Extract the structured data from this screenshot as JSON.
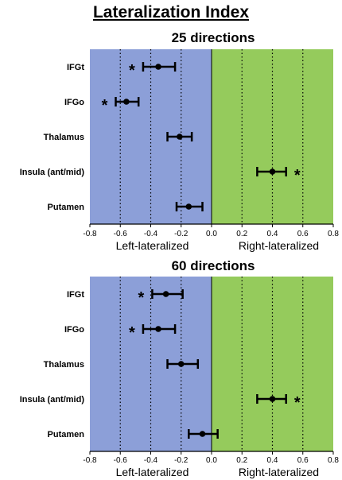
{
  "title": "Lateralization Index",
  "colors": {
    "left_region": "#8c9fd8",
    "right_region": "#95cb5c",
    "marker": "#000000"
  },
  "chart_data": [
    {
      "type": "scatter",
      "subtitle": "25 directions",
      "categories": [
        "IFGt",
        "IFGo",
        "Thalamus",
        "Insula (ant/mid)",
        "Putamen"
      ],
      "series": [
        {
          "values": [
            -0.35,
            -0.56,
            -0.21,
            0.4,
            -0.15
          ],
          "error_low": [
            -0.45,
            -0.63,
            -0.29,
            0.3,
            -0.23
          ],
          "error_high": [
            -0.24,
            -0.48,
            -0.13,
            0.49,
            -0.06
          ],
          "significant": [
            true,
            true,
            false,
            true,
            false
          ]
        }
      ],
      "xlim": [
        -0.8,
        0.8
      ],
      "xticks": [
        "-0.8",
        "-0.6",
        "-0.4",
        "-0.2",
        "0.0",
        "0.2",
        "0.4",
        "0.6",
        "0.8"
      ],
      "region_labels": [
        "Left-lateralized",
        "Right-lateralized"
      ],
      "star_label": "*",
      "gridlines": "dotted vertical"
    },
    {
      "type": "scatter",
      "subtitle": "60 directions",
      "categories": [
        "IFGt",
        "IFGo",
        "Thalamus",
        "Insula (ant/mid)",
        "Putamen"
      ],
      "series": [
        {
          "values": [
            -0.3,
            -0.35,
            -0.2,
            0.4,
            -0.06
          ],
          "error_low": [
            -0.39,
            -0.45,
            -0.29,
            0.3,
            -0.15
          ],
          "error_high": [
            -0.19,
            -0.24,
            -0.09,
            0.49,
            0.04
          ],
          "significant": [
            true,
            true,
            false,
            true,
            false
          ]
        }
      ],
      "xlim": [
        -0.8,
        0.8
      ],
      "xticks": [
        "-0.8",
        "-0.6",
        "-0.4",
        "-0.2",
        "0.0",
        "0.2",
        "0.4",
        "0.6",
        "0.8"
      ],
      "region_labels": [
        "Left-lateralized",
        "Right-lateralized"
      ],
      "star_label": "*",
      "gridlines": "dotted vertical"
    }
  ]
}
